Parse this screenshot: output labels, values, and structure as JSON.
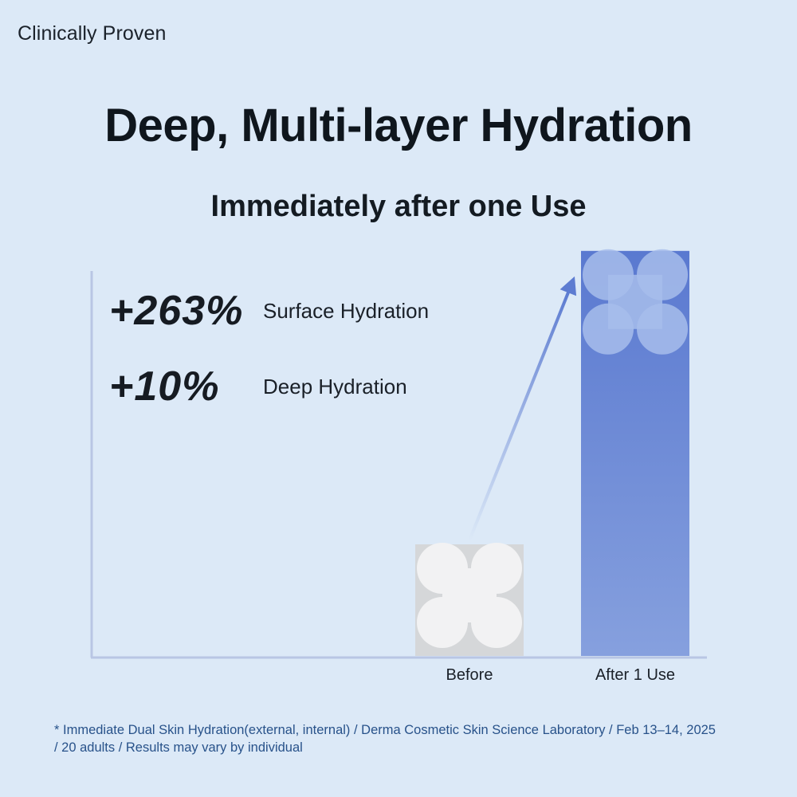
{
  "header": {
    "eyebrow": "Clinically Proven",
    "title": "Deep, Multi-layer Hydration",
    "subtitle": "Immediately after one Use"
  },
  "stats": [
    {
      "value": "+263%",
      "label": "Surface Hydration"
    },
    {
      "value": "+10%",
      "label": "Deep Hydration"
    }
  ],
  "chart_data": {
    "type": "bar",
    "categories": [
      "Before",
      "After 1 Use"
    ],
    "values": [
      1,
      3.63
    ],
    "title": "",
    "xlabel": "",
    "ylabel": "",
    "grid": false,
    "colors": {
      "before": "#d5d7d9",
      "after": "#5f7fd2",
      "arrow": "#5d7cd1",
      "axis": "#b9c6e4"
    }
  },
  "footnote": {
    "line1": "* Immediate Dual Skin Hydration(external, internal)  / Derma Cosmetic Skin Science Laboratory / Feb 13–14, 2025",
    "line2": "/ 20 adults / Results may vary by individual"
  }
}
